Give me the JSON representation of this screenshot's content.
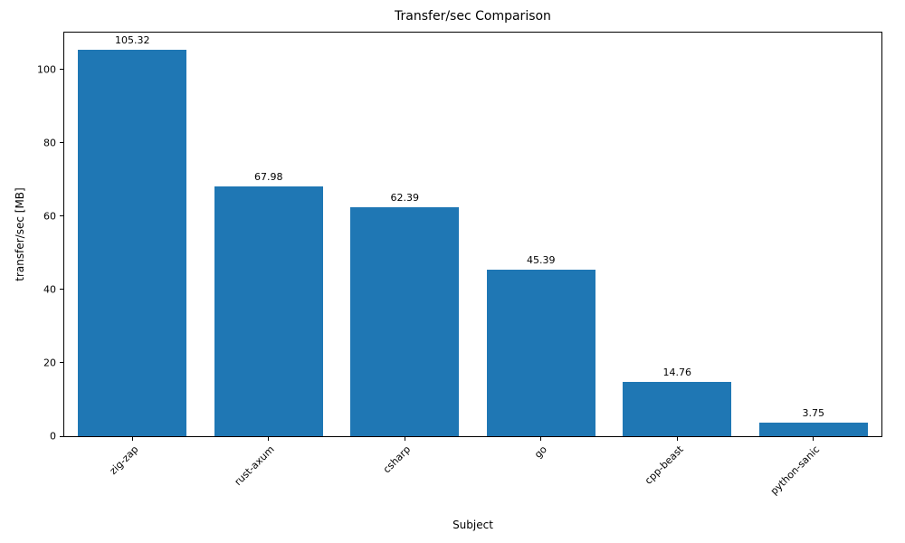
{
  "figure": {
    "background": "#ffffff"
  },
  "chart_data": {
    "type": "bar",
    "title": "Transfer/sec Comparison",
    "xlabel": "Subject",
    "ylabel": "transfer/sec [MB]",
    "categories": [
      "zig-zap",
      "rust-axum",
      "csharp",
      "go",
      "cpp-beast",
      "python-sanic"
    ],
    "values": [
      105.32,
      67.98,
      62.39,
      45.39,
      14.76,
      3.75
    ],
    "value_labels": [
      "105.32",
      "67.98",
      "62.39",
      "45.39",
      "14.76",
      "3.75"
    ],
    "bar_color": "#1f77b4",
    "ylim": [
      0,
      110
    ],
    "yticks": [
      0,
      20,
      40,
      60,
      80,
      100
    ],
    "grid": false,
    "legend_position": "none",
    "xtick_rotation": 45
  }
}
